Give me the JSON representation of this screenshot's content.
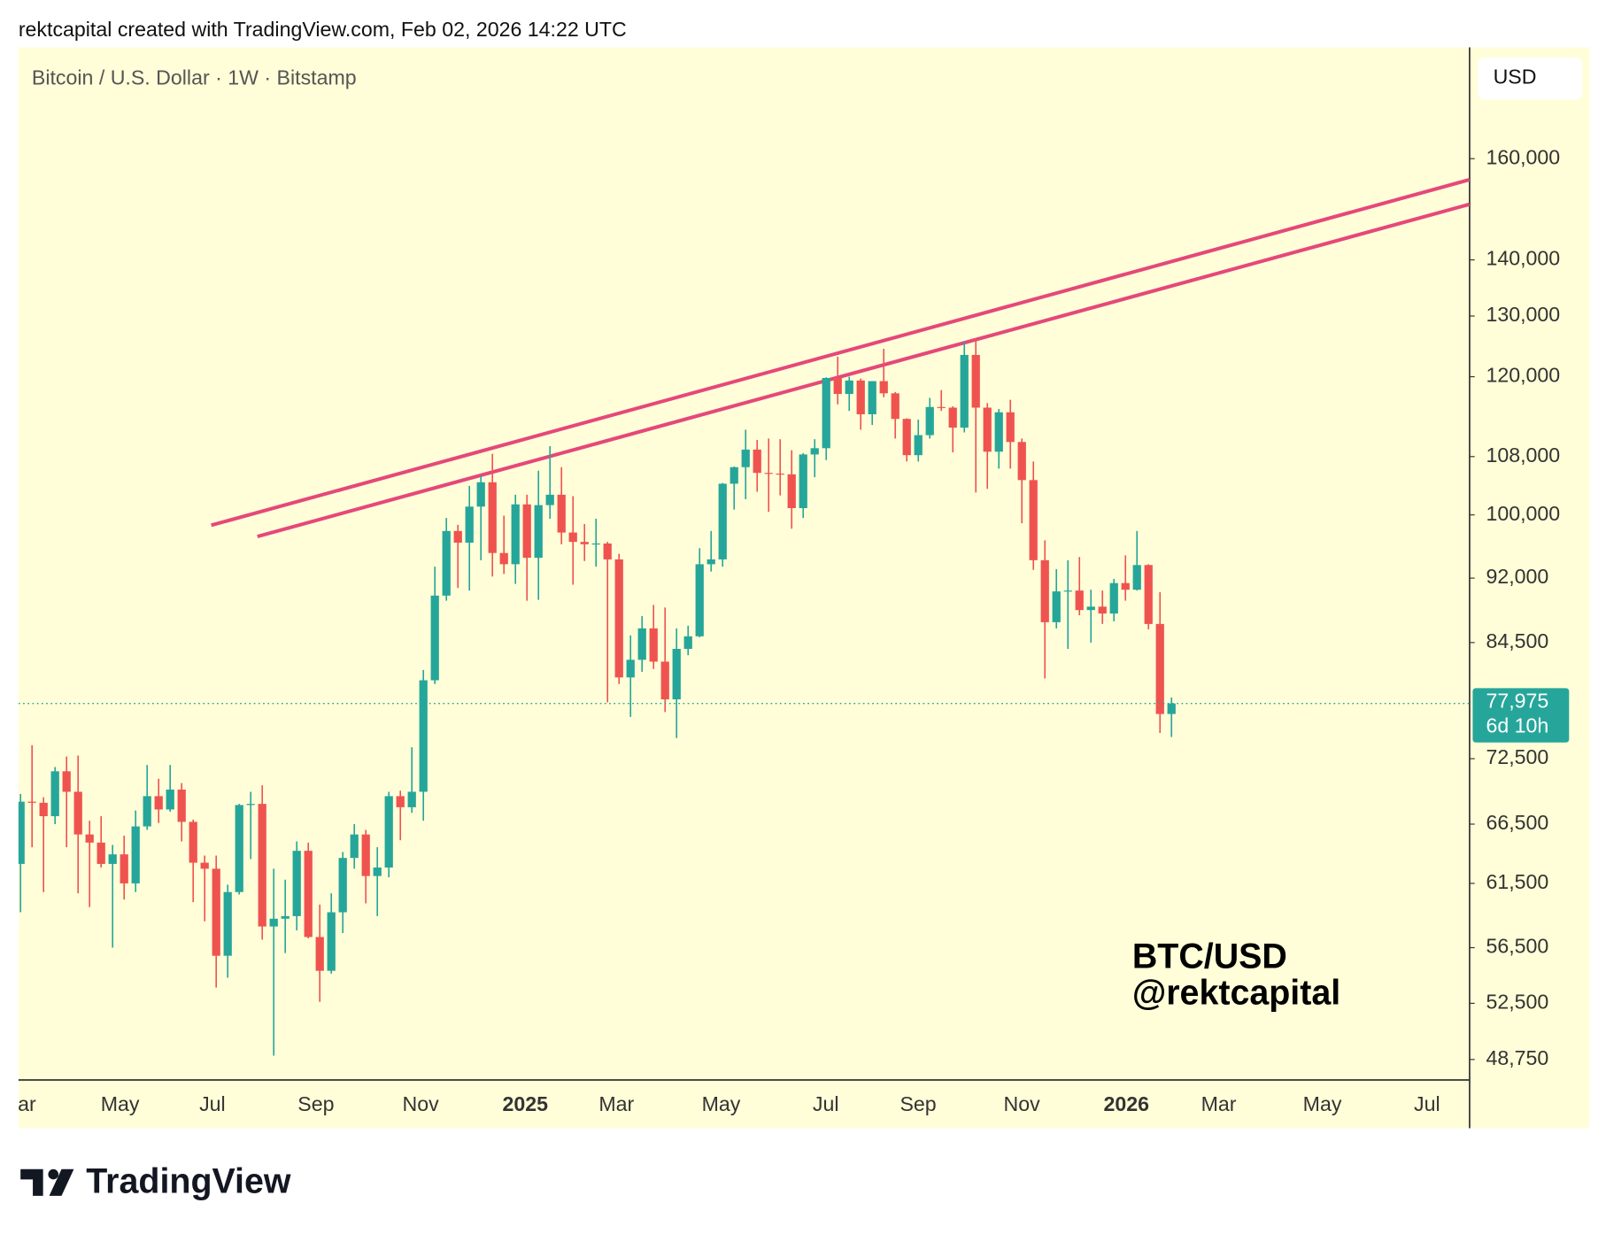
{
  "header": {
    "attribution": "rektcapital created with TradingView.com, Feb 02, 2026 14:22 UTC"
  },
  "footer": {
    "brand": "TradingView"
  },
  "chart_data": {
    "type": "candlestick",
    "title": "Bitcoin / U.S. Dollar · 1W · Bitstamp",
    "currency": "USD",
    "annotations": [
      "BTC/USD",
      "@rektcapital"
    ],
    "log_scale": true,
    "up_color": "#26a69a",
    "down_color": "#ef5350",
    "trendline_color": "#e5487a",
    "ylim": [
      47450,
      185300
    ],
    "yticks": [
      {
        "value": 48750,
        "label": "48,750"
      },
      {
        "value": 52500,
        "label": "52,500"
      },
      {
        "value": 56500,
        "label": "56,500"
      },
      {
        "value": 61500,
        "label": "61,500"
      },
      {
        "value": 66500,
        "label": "66,500"
      },
      {
        "value": 72500,
        "label": "72,500"
      },
      {
        "value": 84500,
        "label": "84,500"
      },
      {
        "value": 92000,
        "label": "92,000"
      },
      {
        "value": 100000,
        "label": "100,000"
      },
      {
        "value": 108000,
        "label": "108,000"
      },
      {
        "value": 120000,
        "label": "120,000"
      },
      {
        "value": 130000,
        "label": "130,000"
      },
      {
        "value": 140000,
        "label": "140,000"
      },
      {
        "value": 160000,
        "label": "160,000"
      }
    ],
    "xlim": [
      -0.18,
      125.9
    ],
    "xticks": [
      {
        "value": -0.18,
        "label": "Mar"
      },
      {
        "value": 8.65,
        "label": "May"
      },
      {
        "value": 16.67,
        "label": "Jul"
      },
      {
        "value": 25.67,
        "label": "Sep"
      },
      {
        "value": 34.76,
        "label": "Nov"
      },
      {
        "value": 43.85,
        "label": "2025"
      },
      {
        "value": 51.78,
        "label": "Mar"
      },
      {
        "value": 60.87,
        "label": "May"
      },
      {
        "value": 69.96,
        "label": "Jul"
      },
      {
        "value": 77.99,
        "label": "Sep"
      },
      {
        "value": 86.99,
        "label": "Nov"
      },
      {
        "value": 96.08,
        "label": "2026"
      },
      {
        "value": 104.1,
        "label": "Mar"
      },
      {
        "value": 113.1,
        "label": "May"
      },
      {
        "value": 122.2,
        "label": "Jul"
      }
    ],
    "last_price": {
      "value": 77975,
      "label": "77,975"
    },
    "countdown": "6d 10h",
    "series": [
      {
        "name": "BTCUSD",
        "open": [
          63100,
          68500,
          68400,
          67200,
          71300,
          69400,
          65600,
          64900,
          63100,
          63900,
          61500,
          66300,
          69000,
          67800,
          69600,
          66700,
          63200,
          62700,
          55900,
          60800,
          68200,
          68300,
          58100,
          58700,
          58900,
          64200,
          57300,
          54800,
          59200,
          63600,
          65600,
          62100,
          62800,
          69000,
          68000,
          69400,
          80400,
          89900,
          97900,
          96400,
          101100,
          104400,
          95100,
          93700,
          101400,
          94500,
          101300,
          102700,
          97700,
          96500,
          96200,
          96300,
          94300,
          80700,
          82600,
          86100,
          82400,
          78400,
          83800,
          85200,
          93700,
          94300,
          104200,
          106500,
          109000,
          105700,
          105600,
          105500,
          100900,
          108300,
          109200,
          119800,
          117300,
          119400,
          114200,
          119300,
          117400,
          113500,
          108200,
          111100,
          115300,
          115200,
          112200,
          123500,
          115200,
          108700,
          114500,
          110100,
          104700,
          94200,
          86800,
          90400,
          90500,
          88200,
          88600,
          87800,
          91400,
          90600,
          93600,
          86600,
          76900
        ],
        "high": [
          69200,
          73800,
          68900,
          71700,
          72700,
          72800,
          66800,
          67200,
          64700,
          65500,
          67700,
          71900,
          70600,
          71900,
          70200,
          66900,
          63800,
          63800,
          61400,
          68300,
          69400,
          70000,
          62700,
          61800,
          65000,
          64900,
          59800,
          60700,
          64100,
          66500,
          66000,
          64500,
          69400,
          69500,
          73600,
          81500,
          93400,
          99600,
          98700,
          103900,
          105300,
          108400,
          99900,
          102700,
          102700,
          106000,
          109500,
          106500,
          102500,
          98800,
          99500,
          96500,
          95000,
          85300,
          87500,
          88800,
          88500,
          86100,
          86400,
          95700,
          97900,
          104300,
          106600,
          111900,
          110400,
          110600,
          110500,
          108900,
          108500,
          110500,
          119900,
          123200,
          120000,
          119700,
          119300,
          124500,
          117600,
          113600,
          113400,
          116700,
          117900,
          115400,
          125700,
          126200,
          115900,
          115000,
          116400,
          110600,
          107300,
          96700,
          93100,
          94200,
          94600,
          90600,
          90500,
          91900,
          94800,
          97900,
          93700,
          90300,
          78600
        ],
        "low": [
          59200,
          64500,
          60800,
          66500,
          64500,
          60700,
          59600,
          62800,
          56500,
          60200,
          60800,
          66000,
          66600,
          67600,
          65000,
          60000,
          58500,
          53600,
          54300,
          60600,
          63500,
          57100,
          49000,
          56100,
          57800,
          57200,
          52600,
          54600,
          57600,
          62700,
          59900,
          58900,
          62000,
          65100,
          67500,
          66800,
          80000,
          89300,
          90800,
          90500,
          94200,
          92200,
          92500,
          91300,
          89300,
          89400,
          99500,
          96200,
          91200,
          94100,
          93400,
          78100,
          80000,
          76600,
          81300,
          81600,
          77100,
          74500,
          83100,
          85100,
          92800,
          93400,
          100700,
          102100,
          103100,
          100400,
          102600,
          98200,
          99600,
          105100,
          107500,
          115700,
          114700,
          111900,
          112600,
          116800,
          110600,
          107300,
          107300,
          110600,
          114700,
          108600,
          111500,
          103000,
          103500,
          106300,
          106300,
          98900,
          93000,
          80600,
          86100,
          83800,
          87600,
          84500,
          86600,
          86900,
          89300,
          90500,
          86000,
          75000,
          74600
        ],
        "close": [
          68500,
          68400,
          67200,
          71300,
          69400,
          65600,
          64900,
          63100,
          63900,
          61500,
          66300,
          69000,
          67800,
          69600,
          66700,
          63200,
          62700,
          55900,
          60800,
          68200,
          68300,
          58100,
          58700,
          58900,
          64200,
          57300,
          54800,
          59200,
          63600,
          65600,
          62100,
          62800,
          69000,
          68000,
          69400,
          80400,
          89900,
          97900,
          96400,
          101100,
          104400,
          95100,
          93700,
          101400,
          94500,
          101300,
          102700,
          97700,
          96500,
          96200,
          96300,
          94300,
          80700,
          82600,
          86100,
          82400,
          78400,
          83800,
          85200,
          93700,
          94300,
          104200,
          106500,
          109000,
          105700,
          105600,
          105500,
          100900,
          108300,
          109200,
          119800,
          117300,
          119400,
          114200,
          119300,
          117400,
          113500,
          108200,
          111100,
          115300,
          115200,
          112200,
          123500,
          115200,
          108700,
          114500,
          110100,
          104700,
          94200,
          86800,
          90400,
          90500,
          88200,
          88600,
          87800,
          91400,
          90600,
          93600,
          86600,
          76900,
          77975
        ]
      }
    ]
  }
}
